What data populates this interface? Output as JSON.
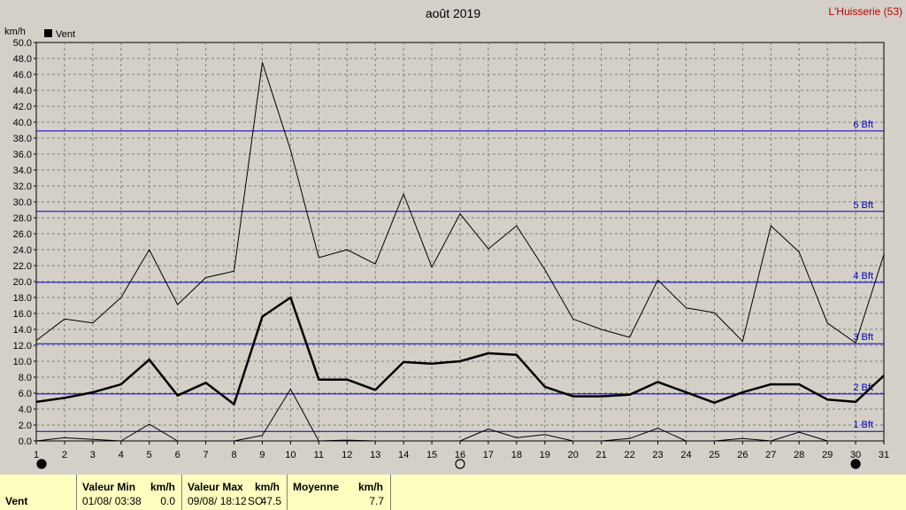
{
  "header": {
    "title": "août 2019",
    "location": "L'Huisserie (53)"
  },
  "legend": {
    "series_label": "Vent",
    "series_color": "#000000"
  },
  "colors": {
    "background": "#d4d0c8",
    "beaufort_line": "#0000c0",
    "grid": "#808080",
    "stats_bg": "#ffffc0"
  },
  "chart_data": {
    "type": "line",
    "title": "août 2019",
    "ylabel": "km/h",
    "ylim": [
      0,
      50
    ],
    "ytick_step": 2,
    "yticks": [
      "0.0",
      "2.0",
      "4.0",
      "6.0",
      "8.0",
      "10.0",
      "12.0",
      "14.0",
      "16.0",
      "18.0",
      "20.0",
      "22.0",
      "24.0",
      "26.0",
      "28.0",
      "30.0",
      "32.0",
      "34.0",
      "36.0",
      "38.0",
      "40.0",
      "42.0",
      "44.0",
      "46.0",
      "48.0",
      "50.0"
    ],
    "x": [
      1,
      2,
      3,
      4,
      5,
      6,
      7,
      8,
      9,
      10,
      11,
      12,
      13,
      14,
      15,
      16,
      17,
      18,
      19,
      20,
      21,
      22,
      23,
      24,
      25,
      26,
      27,
      28,
      29,
      30,
      31
    ],
    "series": [
      {
        "role": "max",
        "values": [
          12.6,
          15.3,
          14.8,
          18.0,
          24.0,
          17.1,
          20.5,
          21.3,
          47.5,
          36.5,
          23.0,
          24.0,
          22.2,
          31.0,
          21.8,
          28.5,
          24.1,
          27.0,
          21.5,
          15.3,
          14.0,
          13.0,
          20.2,
          16.7,
          16.1,
          12.5,
          27.0,
          23.7,
          14.8,
          12.3,
          23.4
        ]
      },
      {
        "role": "mean",
        "values": [
          4.9,
          5.4,
          6.1,
          7.1,
          10.2,
          5.7,
          7.3,
          4.6,
          15.6,
          18.0,
          7.7,
          7.7,
          6.4,
          9.9,
          9.7,
          10.0,
          11.0,
          10.8,
          6.8,
          5.6,
          5.6,
          5.8,
          7.4,
          6.1,
          4.8,
          6.1,
          7.1,
          7.1,
          5.2,
          4.9,
          8.2
        ]
      },
      {
        "role": "min",
        "values": [
          0.0,
          0.4,
          0.2,
          0.0,
          2.1,
          0.0,
          0.0,
          0.0,
          0.7,
          6.5,
          0.0,
          0.1,
          0.0,
          0.0,
          0.0,
          0.0,
          1.5,
          0.4,
          0.8,
          0.0,
          0.0,
          0.3,
          1.6,
          0.0,
          0.0,
          0.3,
          0.0,
          1.1,
          0.0,
          0.0,
          0.0
        ]
      }
    ],
    "beaufort": [
      {
        "label": "1 Bft",
        "value": 1.2
      },
      {
        "label": "2 Bft",
        "value": 5.9
      },
      {
        "label": "3 Bft",
        "value": 12.2
      },
      {
        "label": "4 Bft",
        "value": 19.9
      },
      {
        "label": "5 Bft",
        "value": 28.8
      },
      {
        "label": "6 Bft",
        "value": 38.9
      }
    ],
    "moon_phases": [
      {
        "day": 1,
        "phase": "new"
      },
      {
        "day": 16,
        "phase": "full"
      },
      {
        "day": 30,
        "phase": "new"
      }
    ]
  },
  "stats": {
    "series_label": "Vent",
    "min": {
      "label": "Valeur Min",
      "unit": "km/h",
      "datetime": "01/08/  03:38",
      "value": "0.0"
    },
    "max": {
      "label": "Valeur Max",
      "unit": "km/h",
      "datetime": "09/08/  18:12",
      "direction": "SO",
      "value": "47.5"
    },
    "mean": {
      "label": "Moyenne",
      "unit": "km/h",
      "value": "7.7"
    }
  }
}
